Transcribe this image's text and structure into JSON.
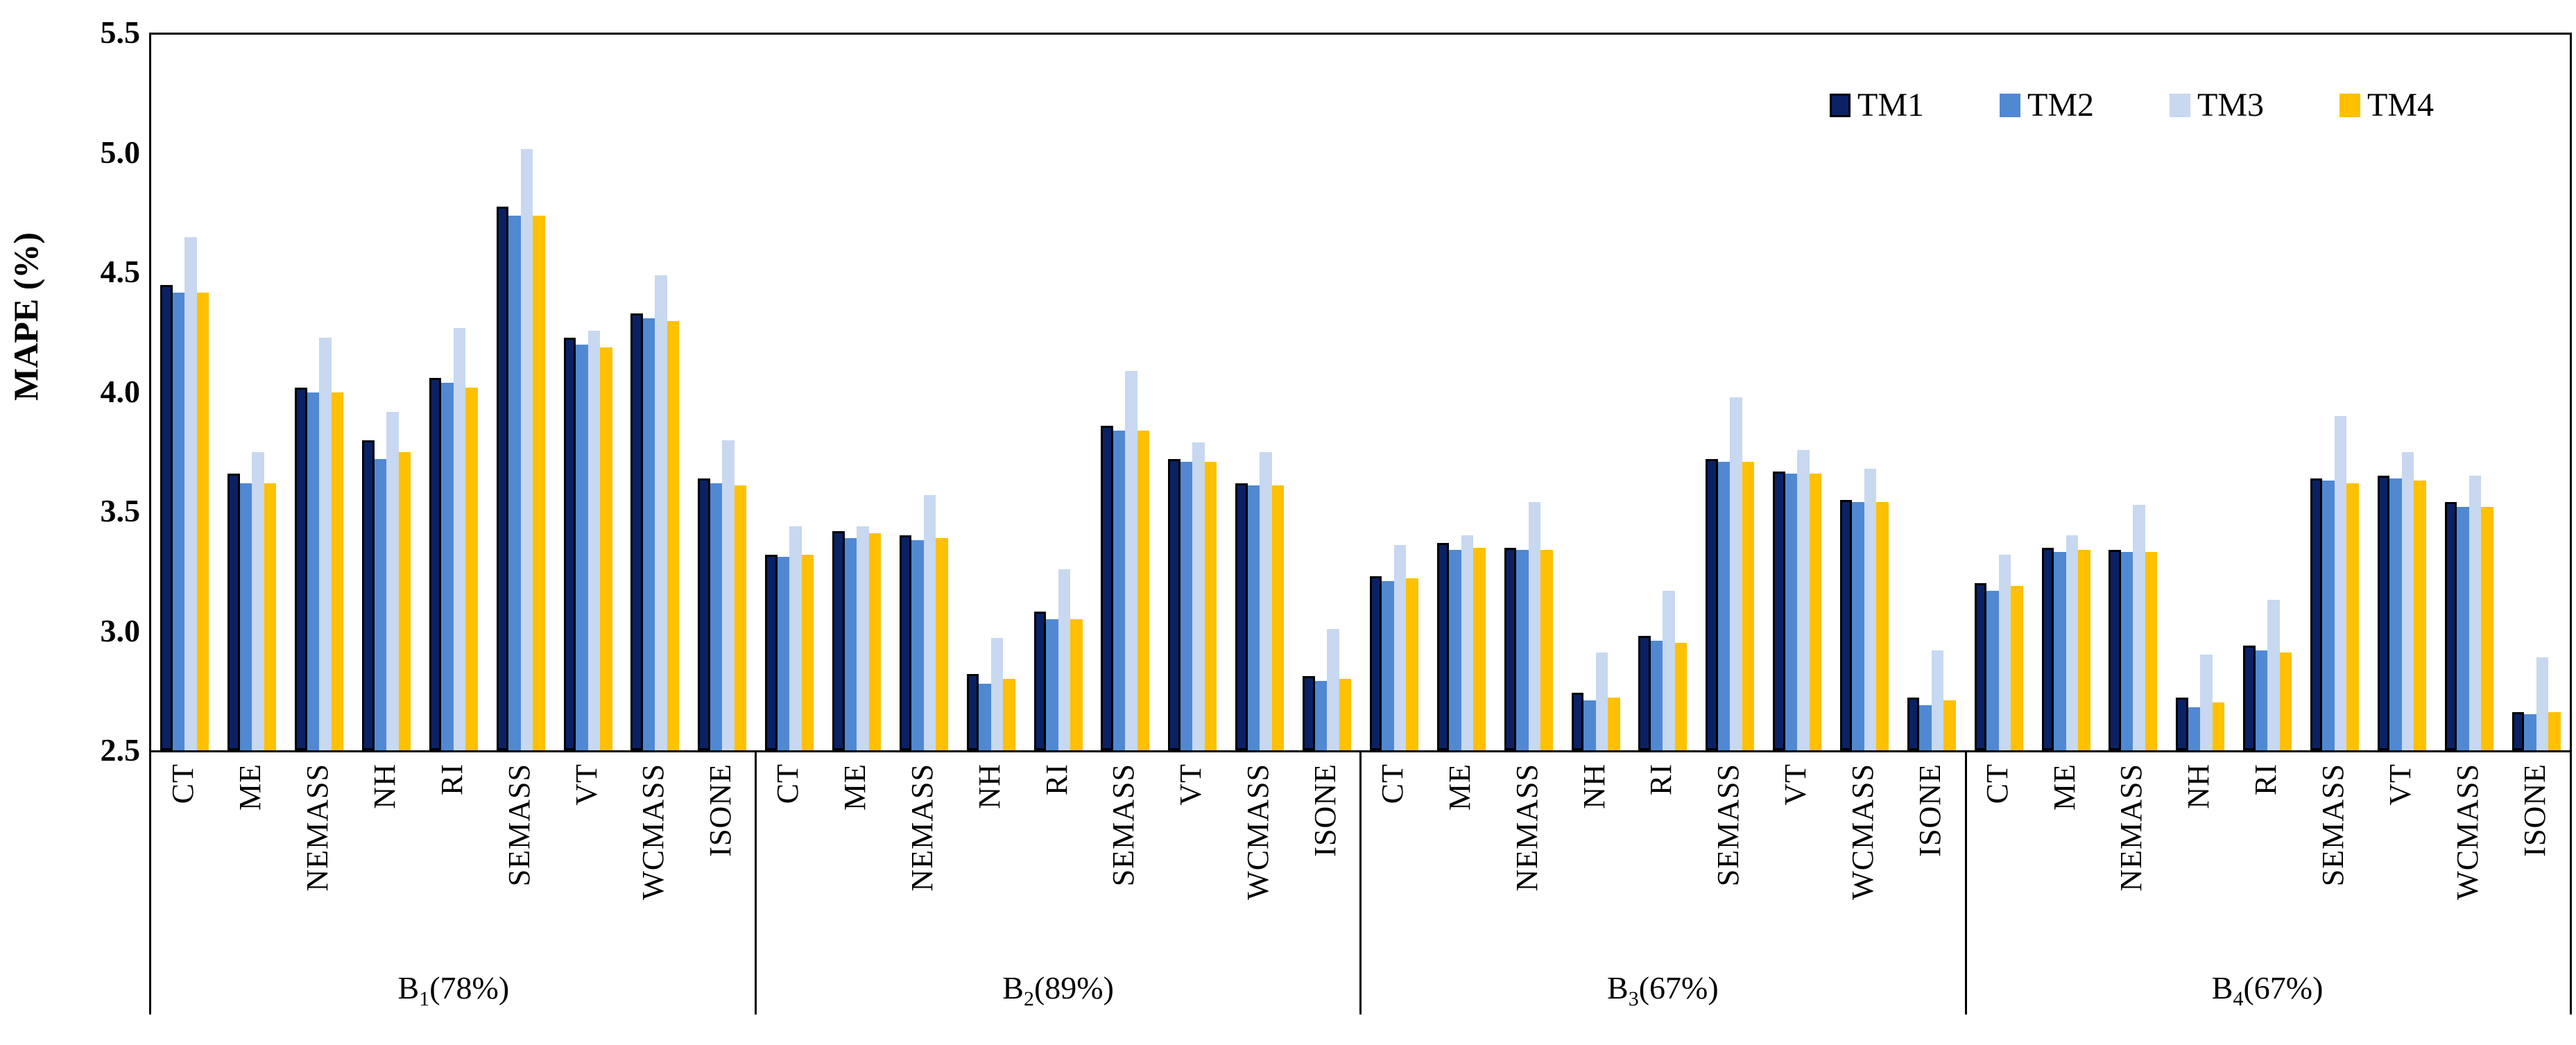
{
  "y_axis": {
    "title": "MAPE (%)",
    "tick_labels": [
      "5.5",
      "5.0",
      "4.5",
      "4.0",
      "3.5",
      "3.0",
      "2.5"
    ]
  },
  "legend": {
    "items": [
      {
        "label": "TM1",
        "color": "#0A2164",
        "outlined": true
      },
      {
        "label": "TM2",
        "color": "#5088D2",
        "outlined": false
      },
      {
        "label": "TM3",
        "color": "#C7D8F0",
        "outlined": false
      },
      {
        "label": "TM4",
        "color": "#FFC000",
        "outlined": false
      }
    ]
  },
  "chart_data": {
    "type": "bar",
    "title": "",
    "xlabel": "",
    "ylabel": "MAPE (%)",
    "ylim": [
      2.5,
      5.5
    ],
    "ytick_step": 0.5,
    "grid": false,
    "legend_position": "top-right-inside",
    "series_names": [
      "TM1",
      "TM2",
      "TM3",
      "TM4"
    ],
    "series_colors": [
      "#0A2164",
      "#5088D2",
      "#C7D8F0",
      "#FFC000"
    ],
    "categories": [
      "CT",
      "ME",
      "NEMASS",
      "NH",
      "RI",
      "SEMASS",
      "VT",
      "WCMASS",
      "ISONE"
    ],
    "groups": [
      {
        "label_base": "B",
        "label_sub": "1",
        "label_suffix": "(78%)",
        "label_text": "B1(78%)",
        "values": [
          [
            4.45,
            4.42,
            4.65,
            4.42
          ],
          [
            3.66,
            3.62,
            3.75,
            3.62
          ],
          [
            4.02,
            4.0,
            4.23,
            4.0
          ],
          [
            3.8,
            3.72,
            3.92,
            3.75
          ],
          [
            4.06,
            4.04,
            4.27,
            4.02
          ],
          [
            4.78,
            4.74,
            5.02,
            4.74
          ],
          [
            4.23,
            4.2,
            4.26,
            4.19
          ],
          [
            4.33,
            4.31,
            4.49,
            4.3
          ],
          [
            3.64,
            3.62,
            3.8,
            3.61
          ]
        ]
      },
      {
        "label_base": "B",
        "label_sub": "2",
        "label_suffix": "(89%)",
        "label_text": "B2(89%)",
        "values": [
          [
            3.32,
            3.31,
            3.44,
            3.32
          ],
          [
            3.42,
            3.39,
            3.44,
            3.41
          ],
          [
            3.4,
            3.38,
            3.57,
            3.39
          ],
          [
            2.82,
            2.78,
            2.97,
            2.8
          ],
          [
            3.08,
            3.05,
            3.26,
            3.05
          ],
          [
            3.86,
            3.84,
            4.09,
            3.84
          ],
          [
            3.72,
            3.71,
            3.79,
            3.71
          ],
          [
            3.62,
            3.61,
            3.75,
            3.61
          ],
          [
            2.81,
            2.79,
            3.01,
            2.8
          ]
        ]
      },
      {
        "label_base": "B",
        "label_sub": "3",
        "label_suffix": "(67%)",
        "label_text": "B3(67%)",
        "values": [
          [
            3.23,
            3.21,
            3.36,
            3.22
          ],
          [
            3.37,
            3.34,
            3.4,
            3.35
          ],
          [
            3.35,
            3.34,
            3.54,
            3.34
          ],
          [
            2.74,
            2.71,
            2.91,
            2.72
          ],
          [
            2.98,
            2.96,
            3.17,
            2.95
          ],
          [
            3.72,
            3.71,
            3.98,
            3.71
          ],
          [
            3.67,
            3.66,
            3.76,
            3.66
          ],
          [
            3.55,
            3.54,
            3.68,
            3.54
          ],
          [
            2.72,
            2.69,
            2.92,
            2.71
          ]
        ]
      },
      {
        "label_base": "B",
        "label_sub": "4",
        "label_suffix": "(67%)",
        "label_text": "B4(67%)",
        "values": [
          [
            3.2,
            3.17,
            3.32,
            3.19
          ],
          [
            3.35,
            3.33,
            3.4,
            3.34
          ],
          [
            3.34,
            3.33,
            3.53,
            3.33
          ],
          [
            2.72,
            2.68,
            2.9,
            2.7
          ],
          [
            2.94,
            2.92,
            3.13,
            2.91
          ],
          [
            3.64,
            3.63,
            3.9,
            3.62
          ],
          [
            3.65,
            3.64,
            3.75,
            3.63
          ],
          [
            3.54,
            3.52,
            3.65,
            3.52
          ],
          [
            2.66,
            2.65,
            2.89,
            2.66
          ]
        ]
      }
    ]
  }
}
